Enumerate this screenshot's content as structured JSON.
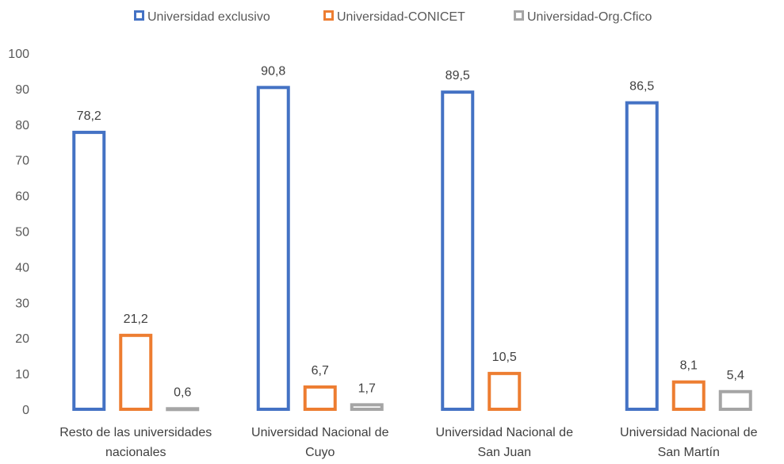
{
  "chart_data": {
    "type": "bar",
    "categories": [
      [
        "Resto de las universidades",
        "nacionales"
      ],
      [
        "Universidad Nacional de",
        "Cuyo"
      ],
      [
        "Universidad Nacional de",
        "San Juan"
      ],
      [
        "Universidad Nacional de",
        "San Martín"
      ]
    ],
    "series": [
      {
        "name": "Universidad exclusivo",
        "color": "#4472C4",
        "values": [
          78.2,
          90.8,
          89.5,
          86.5
        ],
        "labels": [
          "78,2",
          "90,8",
          "89,5",
          "86,5"
        ]
      },
      {
        "name": "Universidad-CONICET",
        "color": "#ED7D31",
        "values": [
          21.2,
          6.7,
          10.5,
          8.1
        ],
        "labels": [
          "21,2",
          "6,7",
          "10,5",
          "8,1"
        ]
      },
      {
        "name": "Universidad-Org.Cfico",
        "color": "#A5A5A5",
        "values": [
          0.6,
          1.7,
          null,
          5.4
        ],
        "labels": [
          "0,6",
          "1,7",
          null,
          "5,4"
        ]
      }
    ],
    "ylim": [
      0,
      100
    ],
    "yticks": [
      0,
      10,
      20,
      30,
      40,
      50,
      60,
      70,
      80,
      90,
      100
    ],
    "grid": false,
    "legend": "top-center",
    "title": "",
    "xlabel": "",
    "ylabel": ""
  }
}
